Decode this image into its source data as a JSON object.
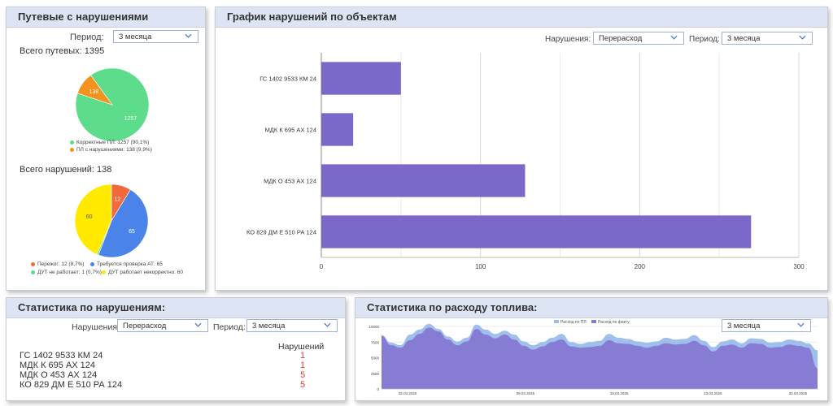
{
  "violations_panel": {
    "title": "Путевые с нарушениями",
    "period_label": "Период:",
    "period_value": "3 месяца",
    "total_waybills": "Всего путевых: 1395",
    "pie1_legend": [
      {
        "label": "Корректные ПЛ: 1257 (90,1%)",
        "color": "#5ddc8c"
      },
      {
        "label": "ПЛ с нарушениями: 138 (9,9%)",
        "color": "#f3921d"
      }
    ],
    "total_violations": "Всего нарушений: 138",
    "pie2_legend": [
      {
        "label": "Пережог: 12 (8,7%)",
        "color": "#f26a3c"
      },
      {
        "label": "Требуется проверка АТ: 65",
        "color": "#4a84e8"
      },
      {
        "label": "ДУТ не работает: 1 (0,7%)",
        "color": "#5ddc8c"
      },
      {
        "label": "ДУТ работает некорректно: 60",
        "color": "#ffea00"
      }
    ]
  },
  "objects_panel": {
    "title": "График нарушений по объектам",
    "violation_label": "Нарушения:",
    "violation_value": "Перерасход",
    "period_label": "Период:",
    "period_value": "3 месяца"
  },
  "stats_panel": {
    "title": "Статистика по нарушениям:",
    "violation_label": "Нарушения:",
    "violation_value": "Перерасход",
    "period_label": "Период:",
    "period_value": "3 месяца",
    "count_header": "Нарушений",
    "rows": [
      {
        "name": "ГС 1402 9533 КМ 24",
        "count": "1"
      },
      {
        "name": "МДК К 695 АХ 124",
        "count": "1"
      },
      {
        "name": "МДК О 453 АХ 124",
        "count": "5"
      },
      {
        "name": "КО 829 ДМ Е 510 РА 124",
        "count": "5"
      }
    ]
  },
  "fuel_panel": {
    "title": "Статистика по расходу топлива:",
    "period_value": "3 месяца"
  },
  "colors": {
    "accent": "#dde5f4",
    "bar": "#7b68c8",
    "area_plan": "#9cbcec",
    "area_fact": "#8578d2",
    "red": "#e53935"
  },
  "chart_data": [
    {
      "type": "pie",
      "labels": [
        "Корректные ПЛ",
        "ПЛ с нарушениями"
      ],
      "values": [
        1257,
        138
      ],
      "colors": [
        "#5ddc8c",
        "#f3921d"
      ]
    },
    {
      "type": "pie",
      "labels": [
        "Пережог",
        "Требуется проверка АТ",
        "ДУТ не работает",
        "ДУТ работает некорректно"
      ],
      "values": [
        12,
        65,
        1,
        60
      ],
      "colors": [
        "#f26a3c",
        "#4a84e8",
        "#5ddc8c",
        "#ffea00"
      ]
    },
    {
      "type": "bar",
      "orientation": "horizontal",
      "categories": [
        "ГС 1402 9533 КМ 24",
        "МДК К 695 АХ 124",
        "МДК О 453 АХ 124",
        "КО 829 ДМ Е 510 РА 124"
      ],
      "values": [
        50,
        20,
        128,
        270
      ],
      "xlim": [
        0,
        300
      ],
      "xticks": [
        "0",
        "100",
        "200",
        "300"
      ],
      "grid": true
    },
    {
      "type": "area",
      "series": [
        {
          "name": "Расход по ПЛ",
          "values": [
            8600,
            7400,
            7000,
            8700,
            9500,
            10400,
            9600,
            8400,
            7600,
            8200,
            10300,
            9500,
            8800,
            9300,
            8700,
            7600,
            7000,
            7500,
            8200,
            8800,
            7500,
            7200,
            7500,
            7700,
            8800,
            8200,
            8000,
            7600,
            7400,
            7600,
            8200,
            7900,
            8000,
            8600,
            7700,
            6700,
            7600,
            7900,
            7300,
            8100,
            8000,
            7400,
            7500,
            7900,
            7700,
            7300,
            6200
          ]
        },
        {
          "name": "Расход по факту",
          "values": [
            8500,
            7000,
            6600,
            7800,
            8800,
            9800,
            9200,
            7900,
            7000,
            7600,
            9600,
            8700,
            8100,
            8700,
            7900,
            6900,
            6300,
            6800,
            7500,
            7900,
            6800,
            6600,
            6700,
            6900,
            7800,
            7300,
            7200,
            6900,
            6600,
            6900,
            7300,
            7100,
            7200,
            7700,
            7000,
            6000,
            6900,
            7100,
            6600,
            7300,
            7200,
            6600,
            6700,
            7100,
            6900,
            6600,
            3300
          ]
        }
      ],
      "ylim": [
        0,
        10000
      ],
      "yticks": [
        "10000",
        "7500",
        "5000",
        "2500",
        "0"
      ],
      "xticks": [
        "02.03.2025",
        "09.03.2025",
        "16.03.2025",
        "23.03.2025",
        "30.03.2025"
      ]
    }
  ]
}
